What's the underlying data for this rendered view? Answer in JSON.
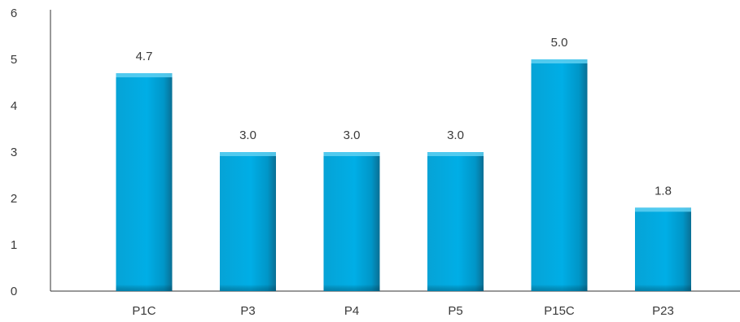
{
  "chart_data": {
    "type": "bar",
    "title": "",
    "xlabel": "",
    "ylabel": "",
    "categories": [
      "P1C",
      "P3",
      "P4",
      "P5",
      "P15C",
      "P23"
    ],
    "values": [
      4.7,
      3.0,
      3.0,
      3.0,
      5.0,
      1.8
    ],
    "data_labels": [
      "4.7",
      "3.0",
      "3.0",
      "3.0",
      "5.0",
      "1.8"
    ],
    "ylim": [
      0,
      6
    ],
    "yticks": [
      "0",
      "1",
      "2",
      "3",
      "4",
      "5",
      "6"
    ],
    "grid": false,
    "legend": "none",
    "colors": {
      "bar": "#00a9e0",
      "bar_dark": "#0a7fa6",
      "bar_top": "#5fd0f2",
      "axis": "#333333"
    }
  }
}
